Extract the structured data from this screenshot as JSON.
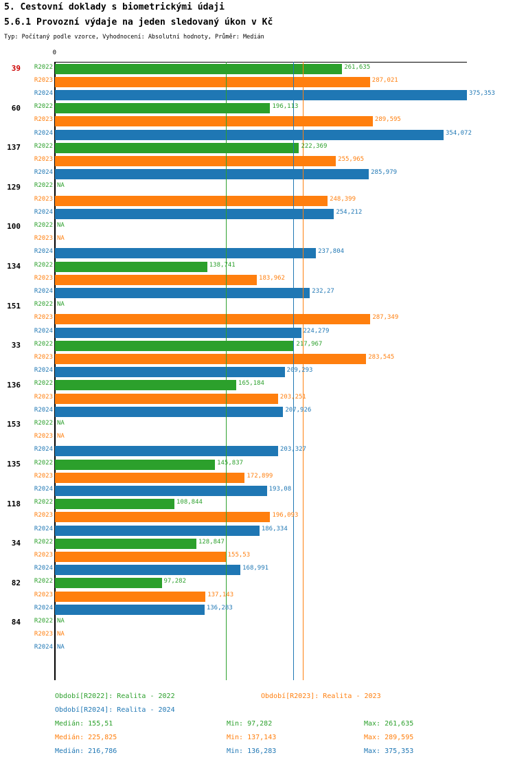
{
  "header": {
    "title": "5. Cestovní doklady s biometrickými údaji",
    "subtitle": "5.6.1 Provozní výdaje na jeden sledovaný úkon v Kč",
    "meta": "Typ: Počítaný podle vzorce, Vyhodnocení: Absolutní hodnoty, Průměr: Medián"
  },
  "colors": {
    "R2022": "#2ca02c",
    "R2023": "#ff7f0e",
    "R2024": "#1f77b4",
    "highlight_id": "#cc0000",
    "id_label": "#000000",
    "axis": "#000000"
  },
  "chart_data": {
    "type": "bar",
    "orientation": "horizontal",
    "title": "5.6.1 Provozní výdaje na jeden sledovaný úkon v Kč",
    "value_unit": "Kč",
    "na_label": "NA",
    "axis": {
      "zero_label": "0",
      "xlim": [
        0,
        375.353
      ]
    },
    "series": [
      "R2022",
      "R2023",
      "R2024"
    ],
    "groups": [
      {
        "id": "39",
        "highlighted": true,
        "values": [
          261.635,
          287.021,
          375.353
        ],
        "labels": [
          "261,635",
          "287,021",
          "375,353"
        ]
      },
      {
        "id": "60",
        "highlighted": false,
        "values": [
          196.113,
          289.595,
          354.072
        ],
        "labels": [
          "196,113",
          "289,595",
          "354,072"
        ]
      },
      {
        "id": "137",
        "highlighted": false,
        "values": [
          222.369,
          255.965,
          285.979
        ],
        "labels": [
          "222,369",
          "255,965",
          "285,979"
        ]
      },
      {
        "id": "129",
        "highlighted": false,
        "values": [
          null,
          248.399,
          254.212
        ],
        "labels": [
          null,
          "248,399",
          "254,212"
        ]
      },
      {
        "id": "100",
        "highlighted": false,
        "values": [
          null,
          null,
          237.804
        ],
        "labels": [
          null,
          null,
          "237,804"
        ]
      },
      {
        "id": "134",
        "highlighted": false,
        "values": [
          138.741,
          183.962,
          232.27
        ],
        "labels": [
          "138,741",
          "183,962",
          "232,27"
        ]
      },
      {
        "id": "151",
        "highlighted": false,
        "values": [
          null,
          287.349,
          224.279
        ],
        "labels": [
          null,
          "287,349",
          "224,279"
        ]
      },
      {
        "id": "33",
        "highlighted": false,
        "values": [
          217.967,
          283.545,
          209.293
        ],
        "labels": [
          "217,967",
          "283,545",
          "209,293"
        ]
      },
      {
        "id": "136",
        "highlighted": false,
        "values": [
          165.184,
          203.251,
          207.926
        ],
        "labels": [
          "165,184",
          "203,251",
          "207,926"
        ]
      },
      {
        "id": "153",
        "highlighted": false,
        "values": [
          null,
          null,
          203.327
        ],
        "labels": [
          null,
          null,
          "203,327"
        ]
      },
      {
        "id": "135",
        "highlighted": false,
        "values": [
          145.837,
          172.899,
          193.08
        ],
        "labels": [
          "145,837",
          "172,899",
          "193,08"
        ]
      },
      {
        "id": "118",
        "highlighted": false,
        "values": [
          108.844,
          196.093,
          186.334
        ],
        "labels": [
          "108,844",
          "196,093",
          "186,334"
        ]
      },
      {
        "id": "34",
        "highlighted": false,
        "values": [
          128.847,
          155.53,
          168.991
        ],
        "labels": [
          "128,847",
          "155,53",
          "168,991"
        ]
      },
      {
        "id": "82",
        "highlighted": false,
        "values": [
          97.282,
          137.143,
          136.283
        ],
        "labels": [
          "97,282",
          "137,143",
          "136,283"
        ]
      },
      {
        "id": "84",
        "highlighted": false,
        "values": [
          null,
          null,
          null
        ],
        "labels": [
          null,
          null,
          null
        ]
      }
    ],
    "median_lines": [
      {
        "series": "R2022",
        "value": 155.51
      },
      {
        "series": "R2024",
        "value": 216.786
      },
      {
        "series": "R2023",
        "value": 225.825
      }
    ]
  },
  "legend": {
    "entries": [
      {
        "series": "R2022",
        "text": "Období[R2022]: Realita - 2022"
      },
      {
        "series": "R2023",
        "text": "Období[R2023]: Realita - 2023"
      },
      {
        "series": "R2024",
        "text": "Období[R2024]: Realita - 2024"
      }
    ],
    "stats": [
      {
        "series": "R2022",
        "median": "Medián: 155,51",
        "min": "Min: 97,282",
        "max": "Max: 261,635"
      },
      {
        "series": "R2023",
        "median": "Medián: 225,825",
        "min": "Min: 137,143",
        "max": "Max: 289,595"
      },
      {
        "series": "R2024",
        "median": "Medián: 216,786",
        "min": "Min: 136,283",
        "max": "Max: 375,353"
      }
    ]
  }
}
